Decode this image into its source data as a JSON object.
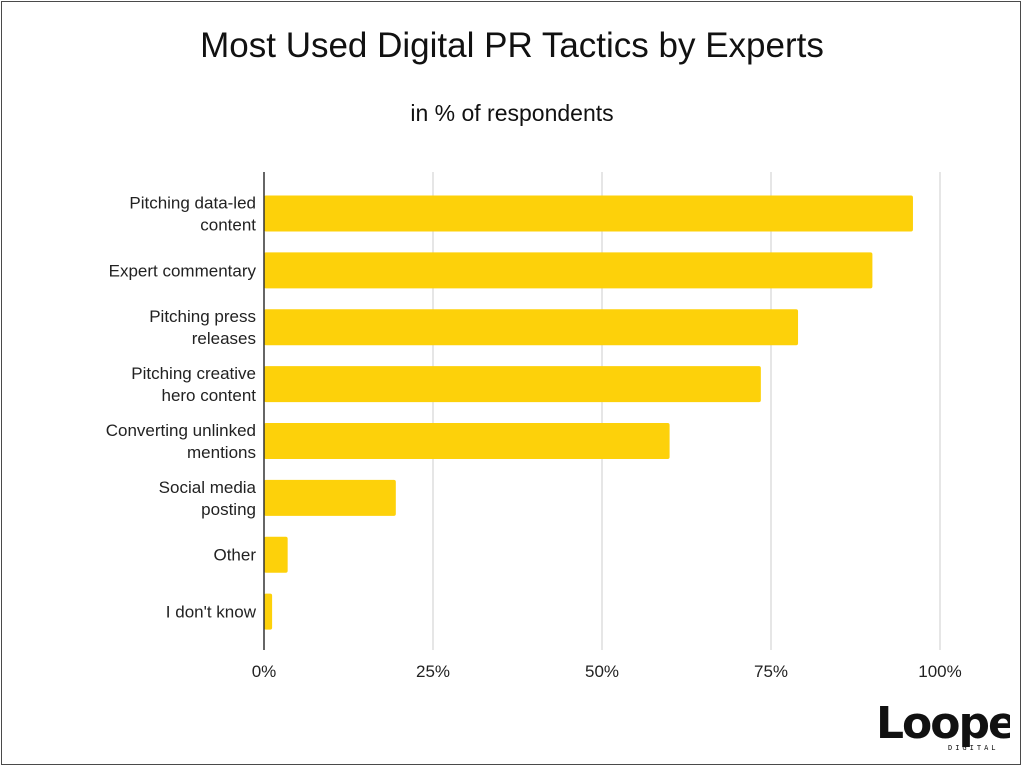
{
  "chart_data": {
    "type": "bar",
    "orientation": "horizontal",
    "title": "Most Used Digital PR Tactics by Experts",
    "subtitle": "in % of respondents",
    "categories": [
      [
        "Pitching data-led",
        "content"
      ],
      [
        "Expert commentary"
      ],
      [
        "Pitching press",
        "releases"
      ],
      [
        "Pitching creative",
        "hero content"
      ],
      [
        "Converting unlinked",
        "mentions"
      ],
      [
        "Social media",
        "posting"
      ],
      [
        "Other"
      ],
      [
        "I don't know"
      ]
    ],
    "values": [
      96,
      90,
      79,
      73.5,
      60,
      19.5,
      3.5,
      1.2
    ],
    "xlim": [
      0,
      100
    ],
    "xticks": [
      0,
      25,
      50,
      75,
      100
    ],
    "xtick_labels": [
      "0%",
      "25%",
      "50%",
      "75%",
      "100%"
    ],
    "bar_color": "#FDD10A",
    "grid": "vertical",
    "legend": "none"
  },
  "logo": {
    "text": "Loopex",
    "subtext": "DIGITAL"
  }
}
